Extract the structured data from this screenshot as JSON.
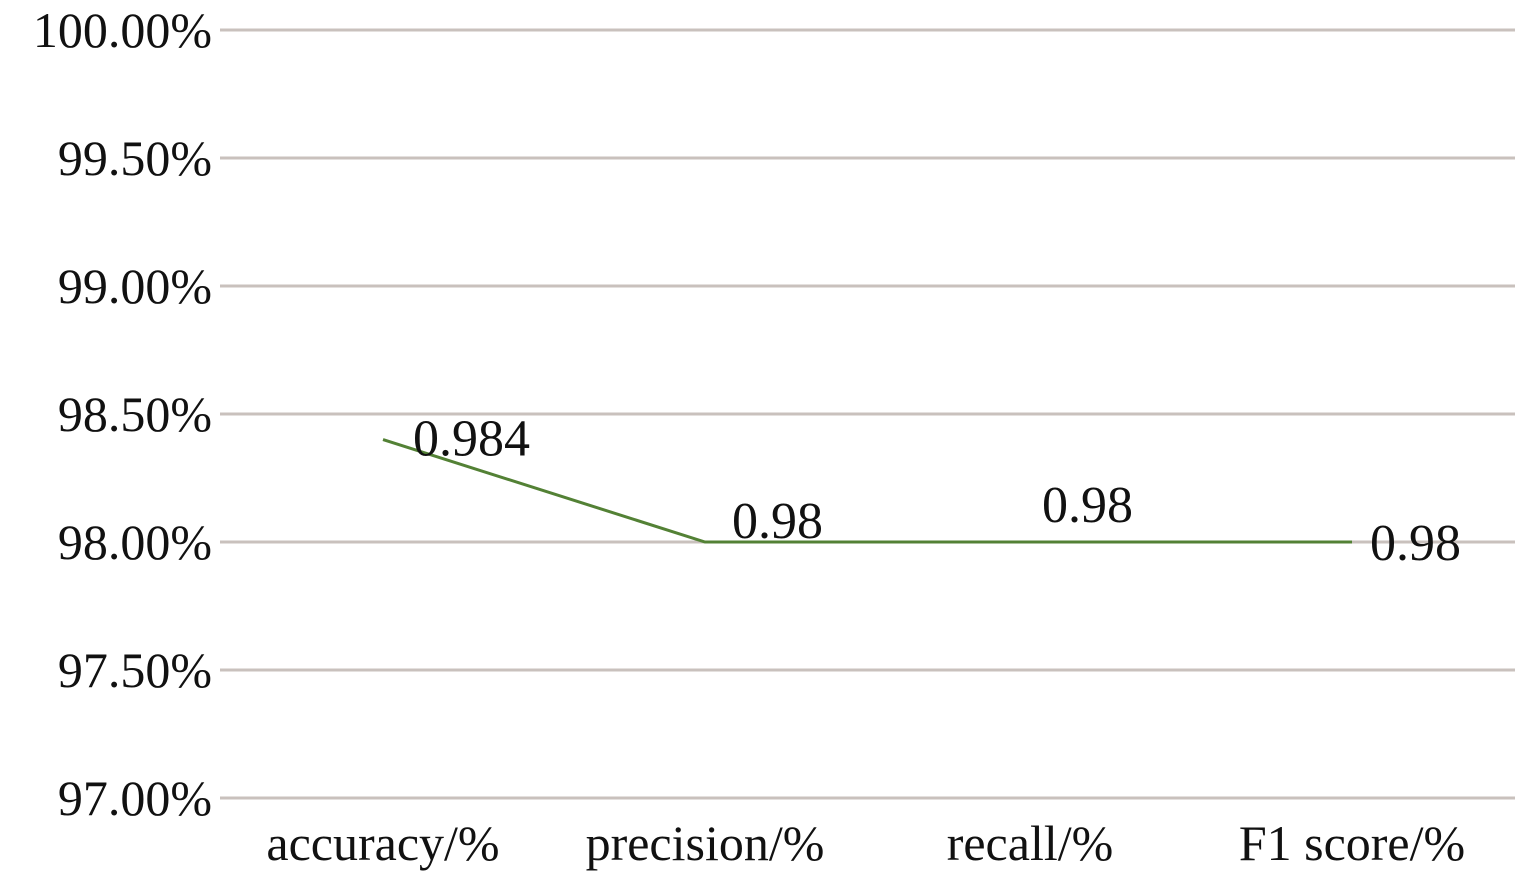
{
  "chart_data": {
    "type": "line",
    "title": "",
    "xlabel": "",
    "ylabel": "",
    "categories": [
      "accuracy/%",
      "precision/%",
      "recall/%",
      "F1 score/%"
    ],
    "series": [
      {
        "values": [
          0.984,
          0.98,
          0.98,
          0.98
        ],
        "data_labels": [
          "0.984",
          "0.98",
          "0.98",
          "0.98"
        ],
        "color": "#538135"
      }
    ],
    "ylim": [
      0.97,
      1.0
    ],
    "yticks": [
      1.0,
      0.995,
      0.99,
      0.985,
      0.98,
      0.975,
      0.97
    ],
    "ytick_labels": [
      "100.00%",
      "99.50%",
      "99.00%",
      "98.50%",
      "98.00%",
      "97.50%",
      "97.00%"
    ],
    "grid": true,
    "gridline_color": "#c9c1bd",
    "legend": "none"
  }
}
